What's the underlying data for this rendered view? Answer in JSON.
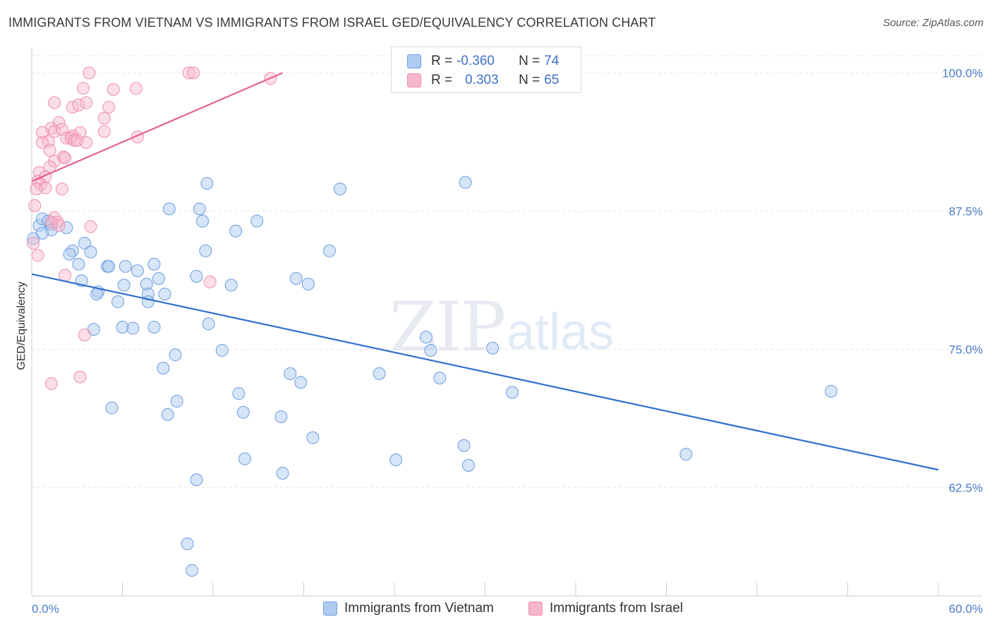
{
  "header": {
    "title": "IMMIGRANTS FROM VIETNAM VS IMMIGRANTS FROM ISRAEL GED/EQUIVALENCY CORRELATION CHART",
    "source": "Source: ZipAtlas.com"
  },
  "watermark": {
    "zip": "ZIP",
    "atlas": "atlas"
  },
  "legend": {
    "rows": [
      {
        "r_label": "R =",
        "r_value": "-0.360",
        "n_label": "N =",
        "n_value": "74",
        "color": "#aecbf0"
      },
      {
        "r_label": "R =",
        "r_value": "0.303",
        "n_label": "N =",
        "n_value": "65",
        "color": "#f7b6c9"
      }
    ]
  },
  "bottom_legend": [
    {
      "label": "Immigrants from Vietnam",
      "color": "#aecbf0"
    },
    {
      "label": "Immigrants from Israel",
      "color": "#f7b6c9"
    }
  ],
  "colors": {
    "vietnam_fill": "#aecbf0",
    "vietnam_stroke": "#6d9ee0",
    "vietnam_line": "#2f6fcf",
    "israel_fill": "#f7b6c9",
    "israel_stroke": "#ee8fae",
    "israel_line": "#e2628e",
    "grid": "#e6e6e6",
    "tick_text": "#4a7cc7"
  },
  "chart_data": {
    "type": "scatter",
    "title": "IMMIGRANTS FROM VIETNAM VS IMMIGRANTS FROM ISRAEL GED/EQUIVALENCY CORRELATION CHART",
    "ylabel": "GED/Equivalency",
    "xlabel": "",
    "xlim": [
      0,
      60
    ],
    "ylim": [
      52.7,
      102
    ],
    "x_tick_labels": [
      "0.0%",
      "60.0%"
    ],
    "y_ticks": [
      62.5,
      75.0,
      87.5,
      100.0
    ],
    "y_tick_labels": [
      "62.5%",
      "75.0%",
      "87.5%",
      "100.0%"
    ],
    "grid": true,
    "legend_position": "top-center",
    "series": [
      {
        "name": "Immigrants from Vietnam",
        "trend": {
          "x": [
            0,
            60
          ],
          "y": [
            81.8,
            64.1
          ]
        },
        "points": [
          [
            0.1,
            85.0
          ],
          [
            0.5,
            86.2
          ],
          [
            0.7,
            86.8
          ],
          [
            1.1,
            86.6
          ],
          [
            1.3,
            86.3
          ],
          [
            2.3,
            86.0
          ],
          [
            1.3,
            85.8
          ],
          [
            0.7,
            85.5
          ],
          [
            3.5,
            84.6
          ],
          [
            2.7,
            83.9
          ],
          [
            3.9,
            83.8
          ],
          [
            2.5,
            83.6
          ],
          [
            3.1,
            82.7
          ],
          [
            5.0,
            82.5
          ],
          [
            5.1,
            82.5
          ],
          [
            6.2,
            82.5
          ],
          [
            7.0,
            82.1
          ],
          [
            8.1,
            82.7
          ],
          [
            3.3,
            81.2
          ],
          [
            8.4,
            81.4
          ],
          [
            10.9,
            81.6
          ],
          [
            6.1,
            80.8
          ],
          [
            7.6,
            80.9
          ],
          [
            13.2,
            80.8
          ],
          [
            17.5,
            81.4
          ],
          [
            18.3,
            80.9
          ],
          [
            7.7,
            80.0
          ],
          [
            4.4,
            80.2
          ],
          [
            4.3,
            80.0
          ],
          [
            8.8,
            80.0
          ],
          [
            5.7,
            79.3
          ],
          [
            7.7,
            79.3
          ],
          [
            11.5,
            83.9
          ],
          [
            19.7,
            83.9
          ],
          [
            9.1,
            87.7
          ],
          [
            11.1,
            87.7
          ],
          [
            11.3,
            86.6
          ],
          [
            13.5,
            85.7
          ],
          [
            14.9,
            86.6
          ],
          [
            11.6,
            90.0
          ],
          [
            20.4,
            89.5
          ],
          [
            28.7,
            90.1
          ],
          [
            26.1,
            76.1
          ],
          [
            26.4,
            74.9
          ],
          [
            30.5,
            75.1
          ],
          [
            6.0,
            77.0
          ],
          [
            6.7,
            76.9
          ],
          [
            8.1,
            77.0
          ],
          [
            11.7,
            77.3
          ],
          [
            4.1,
            76.8
          ],
          [
            12.6,
            74.9
          ],
          [
            9.5,
            74.5
          ],
          [
            17.1,
            72.8
          ],
          [
            17.8,
            72.0
          ],
          [
            23.0,
            72.8
          ],
          [
            27.0,
            72.4
          ],
          [
            8.7,
            73.3
          ],
          [
            31.8,
            71.1
          ],
          [
            52.9,
            71.2
          ],
          [
            13.7,
            71.0
          ],
          [
            9.6,
            70.3
          ],
          [
            5.3,
            69.7
          ],
          [
            9.0,
            69.1
          ],
          [
            14.0,
            69.3
          ],
          [
            16.5,
            68.9
          ],
          [
            18.6,
            67.0
          ],
          [
            28.6,
            66.3
          ],
          [
            43.3,
            65.5
          ],
          [
            14.1,
            65.1
          ],
          [
            24.1,
            65.0
          ],
          [
            28.9,
            64.5
          ],
          [
            16.6,
            63.8
          ],
          [
            10.9,
            63.2
          ],
          [
            10.3,
            57.4
          ],
          [
            10.6,
            55.0
          ]
        ]
      },
      {
        "name": "Immigrants from Israel",
        "trend": {
          "x": [
            0,
            16.6
          ],
          "y": [
            90.2,
            100.0
          ]
        },
        "points": [
          [
            3.8,
            100.0
          ],
          [
            10.4,
            100.0
          ],
          [
            10.7,
            100.0
          ],
          [
            3.4,
            98.6
          ],
          [
            5.4,
            98.5
          ],
          [
            6.9,
            98.6
          ],
          [
            15.8,
            99.5
          ],
          [
            1.5,
            97.3
          ],
          [
            2.7,
            96.9
          ],
          [
            3.1,
            97.1
          ],
          [
            3.6,
            97.3
          ],
          [
            5.1,
            96.9
          ],
          [
            1.8,
            95.5
          ],
          [
            1.3,
            95.0
          ],
          [
            1.5,
            94.7
          ],
          [
            2.0,
            94.9
          ],
          [
            0.7,
            94.6
          ],
          [
            4.8,
            95.9
          ],
          [
            3.2,
            94.6
          ],
          [
            4.8,
            94.7
          ],
          [
            2.7,
            94.3
          ],
          [
            2.3,
            94.1
          ],
          [
            2.6,
            94.1
          ],
          [
            7.0,
            94.2
          ],
          [
            2.8,
            93.9
          ],
          [
            3.6,
            93.7
          ],
          [
            1.1,
            93.8
          ],
          [
            0.7,
            93.7
          ],
          [
            3.0,
            93.9
          ],
          [
            1.2,
            93.0
          ],
          [
            2.1,
            92.4
          ],
          [
            2.2,
            92.3
          ],
          [
            1.5,
            92.0
          ],
          [
            1.2,
            91.5
          ],
          [
            0.5,
            91.0
          ],
          [
            0.9,
            90.6
          ],
          [
            0.4,
            90.2
          ],
          [
            0.6,
            89.9
          ],
          [
            0.9,
            89.6
          ],
          [
            0.3,
            89.5
          ],
          [
            2.0,
            89.5
          ],
          [
            0.2,
            88.0
          ],
          [
            1.5,
            86.9
          ],
          [
            1.7,
            86.5
          ],
          [
            1.3,
            86.5
          ],
          [
            1.8,
            86.2
          ],
          [
            3.9,
            86.1
          ],
          [
            0.1,
            84.6
          ],
          [
            0.4,
            83.5
          ],
          [
            2.2,
            81.7
          ],
          [
            11.8,
            81.1
          ],
          [
            3.5,
            76.3
          ],
          [
            3.2,
            72.5
          ],
          [
            1.3,
            71.9
          ]
        ]
      }
    ]
  }
}
